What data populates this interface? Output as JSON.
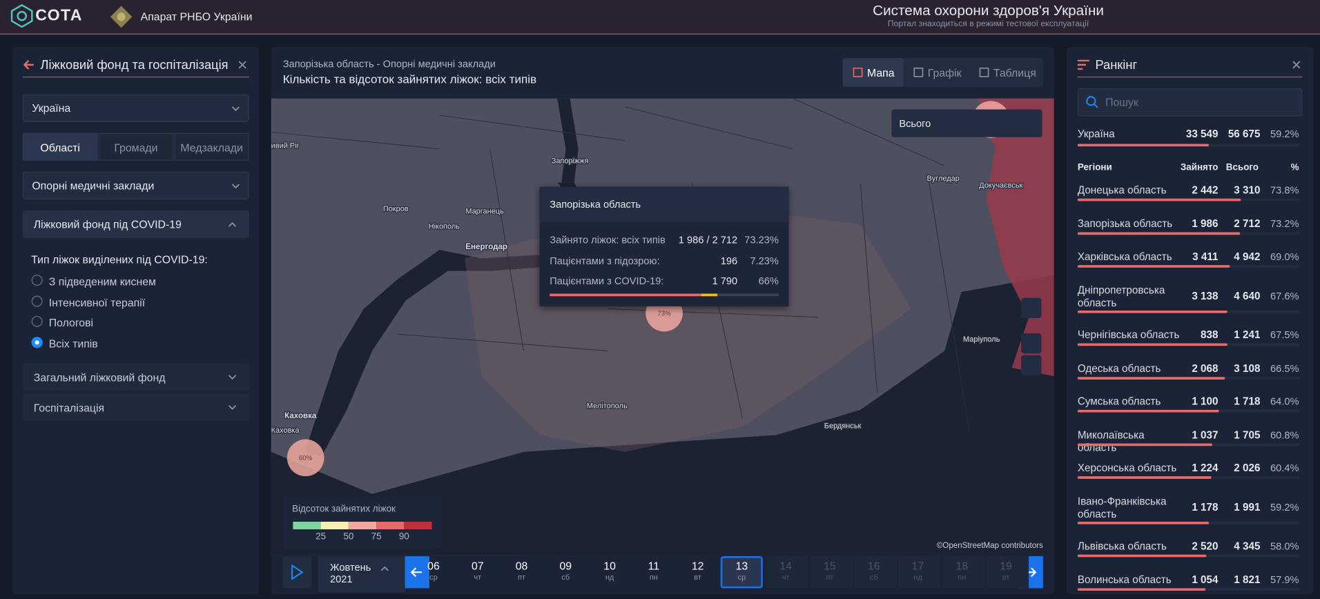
{
  "header": {
    "logo": "СОТА",
    "org": "Апарат РНБО України",
    "title": "Система охорони здоров'я України",
    "subtitle": "Портал знаходиться в режимі тестової експлуатації"
  },
  "left_panel": {
    "title": "Ліжковий фонд та госпіталізація",
    "region_select": "Україна",
    "tabs": [
      {
        "label": "Області",
        "active": true
      },
      {
        "label": "Громади",
        "active": false
      },
      {
        "label": "Медзаклади",
        "active": false
      }
    ],
    "facility_select": "Опорні медичні заклади",
    "open_section": "Ліжковий фонд під COVID-19",
    "radio_title": "Тип ліжок виділених під COVID-19:",
    "radios": [
      {
        "label": "З підведеним киснем",
        "checked": false
      },
      {
        "label": "Інтенсивної терапії",
        "checked": false
      },
      {
        "label": "Пологові",
        "checked": false
      },
      {
        "label": "Всіх типів",
        "checked": true
      }
    ],
    "sections": [
      "Загальний ліжковий фонд",
      "Госпіталізація"
    ]
  },
  "center_panel": {
    "breadcrumb": "Запорізька область - Опорні медичні заклади",
    "title": "Кількість та відсоток зайнятих ліжок: всіх типів",
    "views": [
      {
        "label": "Мапа",
        "active": true
      },
      {
        "label": "Графік",
        "active": false
      },
      {
        "label": "Таблиця",
        "active": false
      }
    ],
    "dropdown": "Всього",
    "map_labels": [
      "ивий Ріг",
      "Запоріжжя",
      "Покров",
      "Марганець",
      "Нікополь",
      "Енергодар",
      "Вугледар",
      "Докучаєвськ",
      "Маріуполь",
      "Мелітополь",
      "Бердянськ",
      "Каховка",
      "Каховка"
    ],
    "circles": [
      {
        "label": "73%"
      },
      {
        "label": "60%"
      }
    ],
    "tooltip": {
      "title": "Запорізька область",
      "rows": [
        {
          "label": "Зайнято ліжок: всіх типів",
          "value": "1 986 / 2 712",
          "pct": 73.23,
          "pct_label": "73.23%"
        },
        {
          "label": "Пацієнтами з підозрою:",
          "value": "196",
          "pct": 7.23,
          "pct_label": "7.23%"
        },
        {
          "label": "Пацієнтами з COVID-19:",
          "value": "1 790",
          "pct": 66,
          "pct_label": "66%"
        }
      ]
    },
    "legend": {
      "title": "Відсоток зайнятих ліжок",
      "colors": [
        "#7fd4a0",
        "#f6f0b4",
        "#f0a8a0",
        "#e86a6a",
        "#c0303c"
      ],
      "ticks": [
        25,
        50,
        75,
        90
      ]
    },
    "attribution": "©OpenStreetMap contributors",
    "timeline": {
      "month": "Жовтень 2021",
      "days": [
        {
          "num": "06",
          "wd": "ср"
        },
        {
          "num": "07",
          "wd": "чт"
        },
        {
          "num": "08",
          "wd": "пт"
        },
        {
          "num": "09",
          "wd": "сб"
        },
        {
          "num": "10",
          "wd": "нд"
        },
        {
          "num": "11",
          "wd": "пн"
        },
        {
          "num": "12",
          "wd": "вт"
        },
        {
          "num": "13",
          "wd": "ср",
          "selected": true
        },
        {
          "num": "14",
          "wd": "чт",
          "disabled": true
        },
        {
          "num": "15",
          "wd": "пт",
          "disabled": true
        },
        {
          "num": "16",
          "wd": "сб",
          "disabled": true
        },
        {
          "num": "17",
          "wd": "нд",
          "disabled": true
        },
        {
          "num": "18",
          "wd": "пн",
          "disabled": true
        },
        {
          "num": "19",
          "wd": "вт",
          "disabled": true
        }
      ]
    }
  },
  "right_panel": {
    "title": "Ранкінг",
    "search_placeholder": "Пошук",
    "summary": {
      "name": "Україна",
      "occupied": "33 549",
      "total": "56 675",
      "pct": 59.2,
      "pct_label": "59.2%"
    },
    "columns": [
      "Регіони",
      "Зайнято",
      "Всього",
      "%"
    ],
    "rows": [
      {
        "name": "Донецька область",
        "occupied": "2 442",
        "total": "3 310",
        "pct": 73.8,
        "pct_label": "73.8%"
      },
      {
        "name": "Запорізька область",
        "occupied": "1 986",
        "total": "2 712",
        "pct": 73.2,
        "pct_label": "73.2%"
      },
      {
        "name": "Харківська область",
        "occupied": "3 411",
        "total": "4 942",
        "pct": 69,
        "pct_label": "69.0%"
      },
      {
        "name": "Дніпропетровська область",
        "occupied": "3 138",
        "total": "4 640",
        "pct": 67.6,
        "pct_label": "67.6%"
      },
      {
        "name": "Чернігівська область",
        "occupied": "838",
        "total": "1 241",
        "pct": 67.5,
        "pct_label": "67.5%"
      },
      {
        "name": "Одеська область",
        "occupied": "2 068",
        "total": "3 108",
        "pct": 66.5,
        "pct_label": "66.5%"
      },
      {
        "name": "Сумська область",
        "occupied": "1 100",
        "total": "1 718",
        "pct": 64,
        "pct_label": "64.0%"
      },
      {
        "name": "Миколаївська область",
        "occupied": "1 037",
        "total": "1 705",
        "pct": 60.8,
        "pct_label": "60.8%"
      },
      {
        "name": "Херсонська область",
        "occupied": "1 224",
        "total": "2 026",
        "pct": 60.4,
        "pct_label": "60.4%"
      },
      {
        "name": "Івано-Франківська область",
        "occupied": "1 178",
        "total": "1 991",
        "pct": 59.2,
        "pct_label": "59.2%"
      },
      {
        "name": "Львівська область",
        "occupied": "2 520",
        "total": "4 345",
        "pct": 58,
        "pct_label": "58.0%"
      },
      {
        "name": "Волинська область",
        "occupied": "1 054",
        "total": "1 821",
        "pct": 57.9,
        "pct_label": "57.9%"
      }
    ]
  }
}
